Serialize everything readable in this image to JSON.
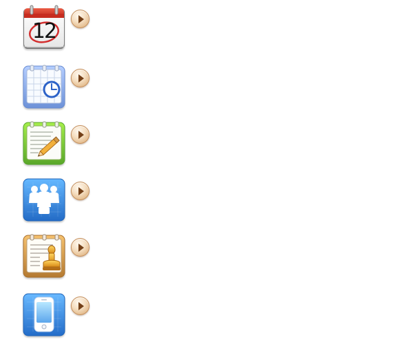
{
  "apps": [
    {
      "id": "calendar",
      "icon": "calendar-icon",
      "label": "",
      "date_number": "12",
      "colors": {
        "header": "#d03a2e",
        "body": "#f7f7f7",
        "circle": "#d32d2d"
      }
    },
    {
      "id": "schedule",
      "icon": "schedule-clock-icon",
      "label": "",
      "colors": {
        "frame": "#8fb4ef",
        "paper": "#f8fbff",
        "clock": "#2d63c8"
      }
    },
    {
      "id": "notes",
      "icon": "notes-pencil-icon",
      "label": "",
      "colors": {
        "frame": "#76c43b",
        "paper": "#fbfcf8",
        "pencil": "#f2b13b"
      }
    },
    {
      "id": "meeting",
      "icon": "meeting-people-icon",
      "label": "",
      "colors": {
        "background": "#3e91df",
        "figures": "#ffffff"
      }
    },
    {
      "id": "approval",
      "icon": "approval-stamp-icon",
      "label": "",
      "colors": {
        "frame": "#d09a48",
        "paper": "#fffdf7",
        "stamp": "#e7a527"
      }
    },
    {
      "id": "mobile",
      "icon": "mobile-phone-icon",
      "label": "",
      "colors": {
        "background": "#3d8fe1",
        "phone": "#ffffff",
        "screen": "#82c7ff"
      }
    }
  ],
  "arrow": {
    "icon": "play-arrow-icon",
    "color": "#744018",
    "button_color": "#f1d2ad"
  }
}
